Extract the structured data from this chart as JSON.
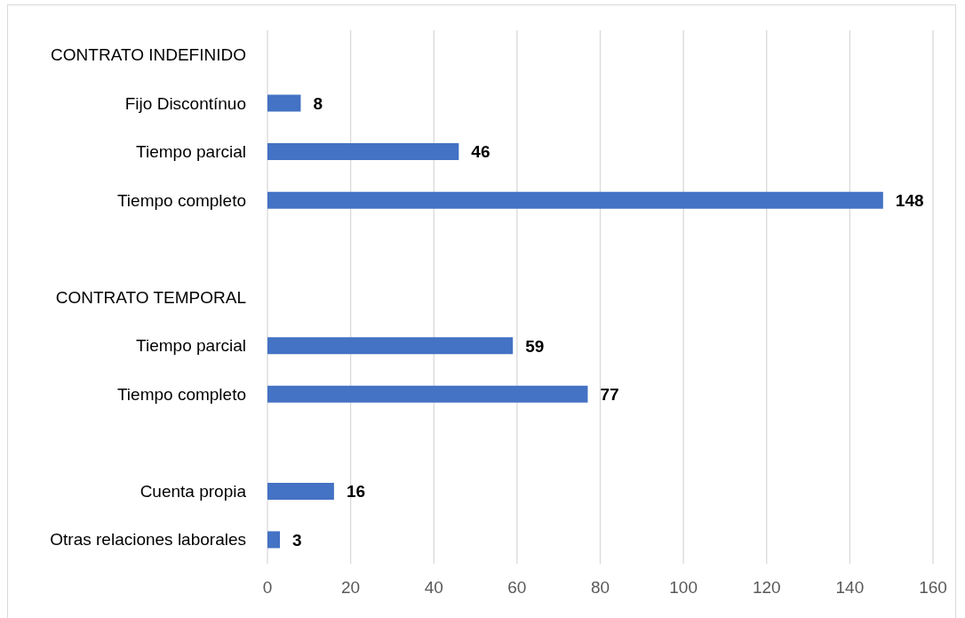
{
  "chart_data": {
    "type": "bar",
    "orientation": "horizontal",
    "categories": [
      "CONTRATO INDEFINIDO",
      "Fijo Discontínuo",
      "Tiempo parcial",
      "Tiempo completo",
      null,
      "CONTRATO TEMPORAL",
      "Tiempo parcial",
      "Tiempo completo",
      null,
      "Cuenta propia",
      "Otras relaciones laborales"
    ],
    "values": [
      null,
      8,
      46,
      148,
      null,
      null,
      59,
      77,
      null,
      16,
      3
    ],
    "color": "#4472c4",
    "xlim": [
      0,
      160
    ],
    "xticks": [
      0,
      20,
      40,
      60,
      80,
      100,
      120,
      140,
      160
    ],
    "grid": "x",
    "data_labels": true
  }
}
